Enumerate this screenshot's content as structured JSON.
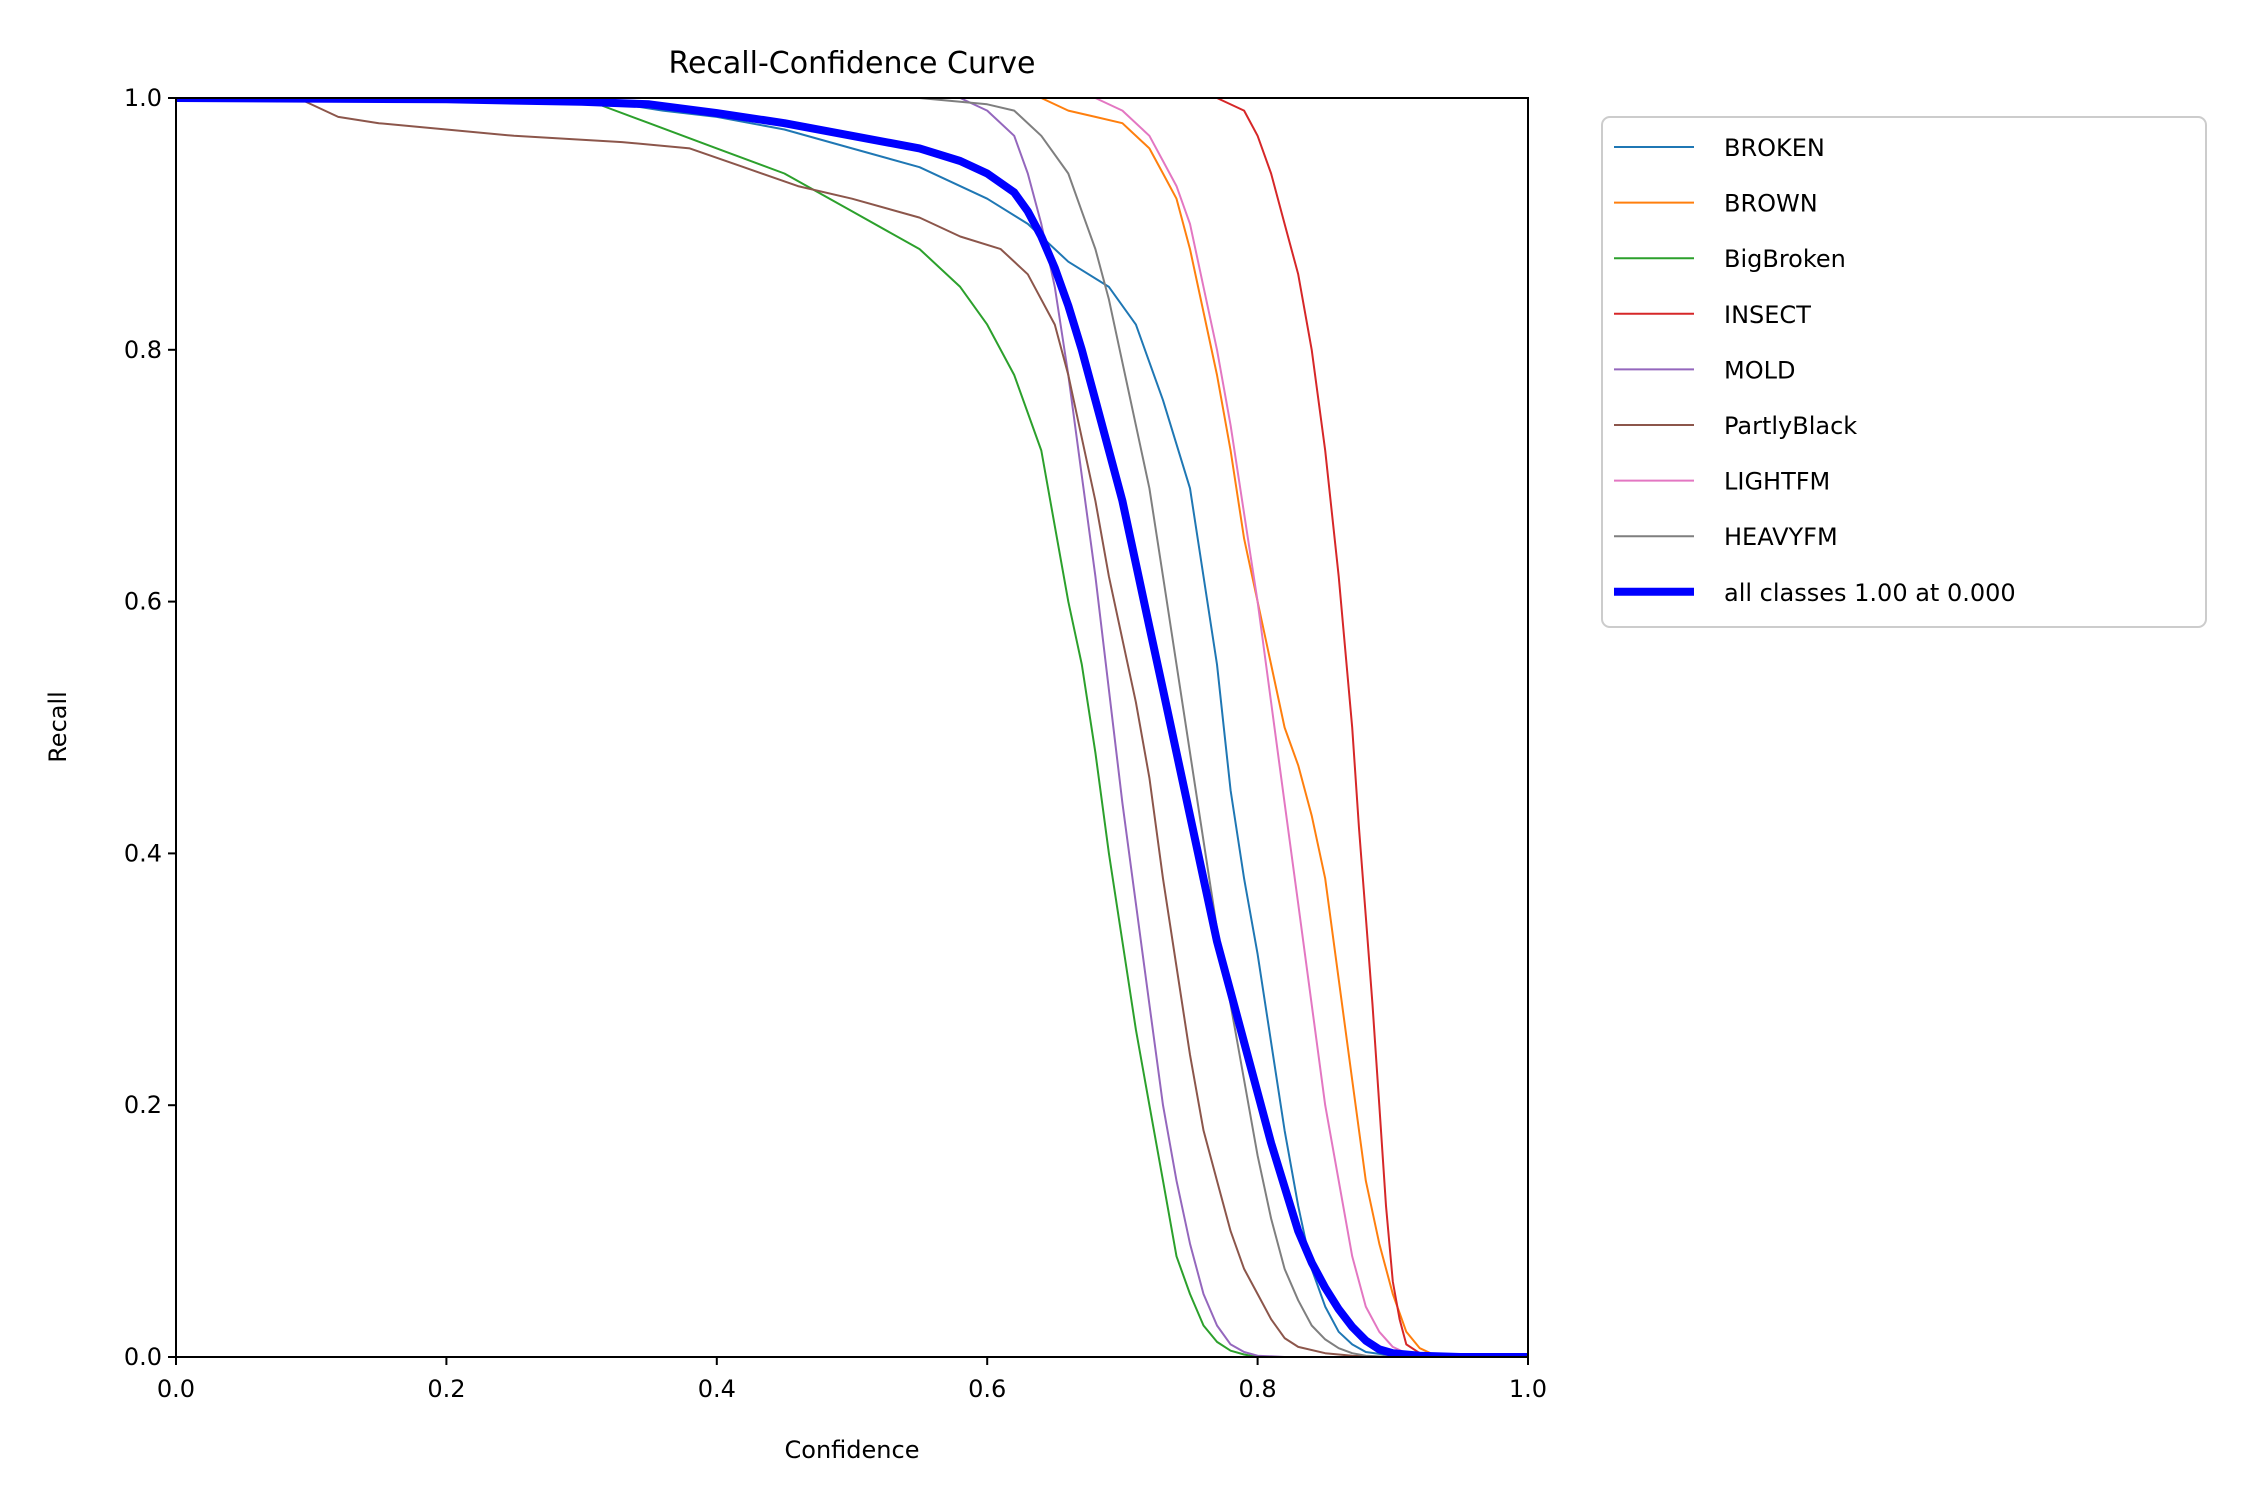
{
  "chart_data": {
    "type": "line",
    "title": "Recall-Confidence Curve",
    "xlabel": "Confidence",
    "ylabel": "Recall",
    "xlim": [
      0,
      1
    ],
    "ylim": [
      0,
      1
    ],
    "xticks": [
      "0.0",
      "0.2",
      "0.4",
      "0.6",
      "0.8",
      "1.0"
    ],
    "yticks": [
      "0.0",
      "0.2",
      "0.4",
      "0.6",
      "0.8",
      "1.0"
    ],
    "grid": false,
    "legend_position": "outside-top-right",
    "series": [
      {
        "name": "BROKEN",
        "color": "#1f77b4",
        "bold": false,
        "points": [
          [
            0,
            1
          ],
          [
            0.3,
            1
          ],
          [
            0.36,
            0.99
          ],
          [
            0.4,
            0.985
          ],
          [
            0.45,
            0.975
          ],
          [
            0.5,
            0.96
          ],
          [
            0.55,
            0.945
          ],
          [
            0.6,
            0.92
          ],
          [
            0.63,
            0.9
          ],
          [
            0.66,
            0.87
          ],
          [
            0.69,
            0.85
          ],
          [
            0.71,
            0.82
          ],
          [
            0.73,
            0.76
          ],
          [
            0.75,
            0.69
          ],
          [
            0.76,
            0.62
          ],
          [
            0.77,
            0.55
          ],
          [
            0.78,
            0.45
          ],
          [
            0.79,
            0.38
          ],
          [
            0.8,
            0.32
          ],
          [
            0.81,
            0.25
          ],
          [
            0.82,
            0.18
          ],
          [
            0.83,
            0.12
          ],
          [
            0.84,
            0.07
          ],
          [
            0.85,
            0.04
          ],
          [
            0.86,
            0.02
          ],
          [
            0.87,
            0.01
          ],
          [
            0.88,
            0.004
          ],
          [
            0.9,
            0.001
          ],
          [
            0.92,
            0
          ],
          [
            1,
            0
          ]
        ]
      },
      {
        "name": "BROWN",
        "color": "#ff7f0e",
        "bold": false,
        "points": [
          [
            0,
            1
          ],
          [
            0.6,
            1
          ],
          [
            0.64,
            1
          ],
          [
            0.66,
            0.99
          ],
          [
            0.68,
            0.985
          ],
          [
            0.7,
            0.98
          ],
          [
            0.72,
            0.96
          ],
          [
            0.73,
            0.94
          ],
          [
            0.74,
            0.92
          ],
          [
            0.75,
            0.88
          ],
          [
            0.76,
            0.83
          ],
          [
            0.77,
            0.78
          ],
          [
            0.78,
            0.72
          ],
          [
            0.79,
            0.65
          ],
          [
            0.8,
            0.6
          ],
          [
            0.81,
            0.55
          ],
          [
            0.82,
            0.5
          ],
          [
            0.83,
            0.47
          ],
          [
            0.84,
            0.43
          ],
          [
            0.85,
            0.38
          ],
          [
            0.86,
            0.3
          ],
          [
            0.87,
            0.22
          ],
          [
            0.88,
            0.14
          ],
          [
            0.89,
            0.09
          ],
          [
            0.9,
            0.05
          ],
          [
            0.91,
            0.02
          ],
          [
            0.92,
            0.007
          ],
          [
            0.93,
            0.002
          ],
          [
            0.94,
            0
          ],
          [
            1,
            0
          ]
        ]
      },
      {
        "name": "BigBroken",
        "color": "#2ca02c",
        "bold": false,
        "points": [
          [
            0,
            1
          ],
          [
            0.3,
            1
          ],
          [
            0.35,
            0.98
          ],
          [
            0.4,
            0.96
          ],
          [
            0.45,
            0.94
          ],
          [
            0.5,
            0.91
          ],
          [
            0.55,
            0.88
          ],
          [
            0.58,
            0.85
          ],
          [
            0.6,
            0.82
          ],
          [
            0.62,
            0.78
          ],
          [
            0.64,
            0.72
          ],
          [
            0.65,
            0.66
          ],
          [
            0.66,
            0.6
          ],
          [
            0.67,
            0.55
          ],
          [
            0.68,
            0.48
          ],
          [
            0.69,
            0.4
          ],
          [
            0.7,
            0.33
          ],
          [
            0.71,
            0.26
          ],
          [
            0.72,
            0.2
          ],
          [
            0.73,
            0.14
          ],
          [
            0.74,
            0.08
          ],
          [
            0.75,
            0.05
          ],
          [
            0.76,
            0.025
          ],
          [
            0.77,
            0.012
          ],
          [
            0.78,
            0.005
          ],
          [
            0.79,
            0.002
          ],
          [
            0.8,
            0
          ],
          [
            1,
            0
          ]
        ]
      },
      {
        "name": "INSECT",
        "color": "#d62728",
        "bold": false,
        "points": [
          [
            0,
            1
          ],
          [
            0.77,
            1
          ],
          [
            0.79,
            0.99
          ],
          [
            0.8,
            0.97
          ],
          [
            0.81,
            0.94
          ],
          [
            0.82,
            0.9
          ],
          [
            0.83,
            0.86
          ],
          [
            0.84,
            0.8
          ],
          [
            0.85,
            0.72
          ],
          [
            0.86,
            0.62
          ],
          [
            0.87,
            0.5
          ],
          [
            0.875,
            0.42
          ],
          [
            0.88,
            0.35
          ],
          [
            0.885,
            0.28
          ],
          [
            0.89,
            0.2
          ],
          [
            0.895,
            0.12
          ],
          [
            0.9,
            0.06
          ],
          [
            0.905,
            0.03
          ],
          [
            0.91,
            0.01
          ],
          [
            0.92,
            0.003
          ],
          [
            0.93,
            0
          ],
          [
            1,
            0
          ]
        ]
      },
      {
        "name": "MOLD",
        "color": "#9467bd",
        "bold": false,
        "points": [
          [
            0,
            1
          ],
          [
            0.55,
            1
          ],
          [
            0.58,
            1
          ],
          [
            0.6,
            0.99
          ],
          [
            0.62,
            0.97
          ],
          [
            0.63,
            0.94
          ],
          [
            0.64,
            0.9
          ],
          [
            0.65,
            0.85
          ],
          [
            0.66,
            0.78
          ],
          [
            0.67,
            0.7
          ],
          [
            0.68,
            0.62
          ],
          [
            0.69,
            0.53
          ],
          [
            0.7,
            0.44
          ],
          [
            0.71,
            0.36
          ],
          [
            0.72,
            0.28
          ],
          [
            0.73,
            0.2
          ],
          [
            0.74,
            0.14
          ],
          [
            0.75,
            0.09
          ],
          [
            0.76,
            0.05
          ],
          [
            0.77,
            0.025
          ],
          [
            0.78,
            0.01
          ],
          [
            0.79,
            0.004
          ],
          [
            0.8,
            0.001
          ],
          [
            0.82,
            0
          ],
          [
            1,
            0
          ]
        ]
      },
      {
        "name": "PartlyBlack",
        "color": "#8c564b",
        "bold": false,
        "points": [
          [
            0,
            1
          ],
          [
            0.09,
            1
          ],
          [
            0.12,
            0.985
          ],
          [
            0.15,
            0.98
          ],
          [
            0.2,
            0.975
          ],
          [
            0.25,
            0.97
          ],
          [
            0.33,
            0.965
          ],
          [
            0.38,
            0.96
          ],
          [
            0.42,
            0.945
          ],
          [
            0.46,
            0.93
          ],
          [
            0.5,
            0.92
          ],
          [
            0.55,
            0.905
          ],
          [
            0.58,
            0.89
          ],
          [
            0.61,
            0.88
          ],
          [
            0.63,
            0.86
          ],
          [
            0.65,
            0.82
          ],
          [
            0.66,
            0.78
          ],
          [
            0.67,
            0.73
          ],
          [
            0.68,
            0.68
          ],
          [
            0.69,
            0.62
          ],
          [
            0.7,
            0.57
          ],
          [
            0.71,
            0.52
          ],
          [
            0.72,
            0.46
          ],
          [
            0.73,
            0.38
          ],
          [
            0.74,
            0.31
          ],
          [
            0.75,
            0.24
          ],
          [
            0.76,
            0.18
          ],
          [
            0.77,
            0.14
          ],
          [
            0.78,
            0.1
          ],
          [
            0.79,
            0.07
          ],
          [
            0.8,
            0.05
          ],
          [
            0.81,
            0.03
          ],
          [
            0.82,
            0.015
          ],
          [
            0.83,
            0.008
          ],
          [
            0.85,
            0.003
          ],
          [
            0.87,
            0.001
          ],
          [
            0.9,
            0
          ],
          [
            1,
            0
          ]
        ]
      },
      {
        "name": "LIGHTFM",
        "color": "#e377c2",
        "bold": false,
        "points": [
          [
            0,
            1
          ],
          [
            0.68,
            1
          ],
          [
            0.7,
            0.99
          ],
          [
            0.72,
            0.97
          ],
          [
            0.73,
            0.95
          ],
          [
            0.74,
            0.93
          ],
          [
            0.75,
            0.9
          ],
          [
            0.76,
            0.85
          ],
          [
            0.77,
            0.8
          ],
          [
            0.78,
            0.74
          ],
          [
            0.79,
            0.67
          ],
          [
            0.8,
            0.6
          ],
          [
            0.81,
            0.52
          ],
          [
            0.82,
            0.44
          ],
          [
            0.83,
            0.36
          ],
          [
            0.84,
            0.28
          ],
          [
            0.85,
            0.2
          ],
          [
            0.86,
            0.14
          ],
          [
            0.87,
            0.08
          ],
          [
            0.88,
            0.04
          ],
          [
            0.89,
            0.02
          ],
          [
            0.9,
            0.008
          ],
          [
            0.91,
            0.003
          ],
          [
            0.92,
            0.001
          ],
          [
            0.93,
            0
          ],
          [
            1,
            0
          ]
        ]
      },
      {
        "name": "HEAVYFM",
        "color": "#7f7f7f",
        "bold": false,
        "points": [
          [
            0,
            1
          ],
          [
            0.55,
            1
          ],
          [
            0.6,
            0.995
          ],
          [
            0.62,
            0.99
          ],
          [
            0.64,
            0.97
          ],
          [
            0.66,
            0.94
          ],
          [
            0.67,
            0.91
          ],
          [
            0.68,
            0.88
          ],
          [
            0.69,
            0.84
          ],
          [
            0.7,
            0.79
          ],
          [
            0.71,
            0.74
          ],
          [
            0.72,
            0.69
          ],
          [
            0.73,
            0.62
          ],
          [
            0.74,
            0.55
          ],
          [
            0.75,
            0.48
          ],
          [
            0.76,
            0.41
          ],
          [
            0.77,
            0.34
          ],
          [
            0.78,
            0.28
          ],
          [
            0.79,
            0.22
          ],
          [
            0.8,
            0.16
          ],
          [
            0.81,
            0.11
          ],
          [
            0.82,
            0.07
          ],
          [
            0.83,
            0.045
          ],
          [
            0.84,
            0.025
          ],
          [
            0.85,
            0.014
          ],
          [
            0.86,
            0.007
          ],
          [
            0.87,
            0.003
          ],
          [
            0.88,
            0.001
          ],
          [
            0.9,
            0
          ],
          [
            1,
            0
          ]
        ]
      },
      {
        "name": "all classes 1.00 at 0.000",
        "color": "#0000ff",
        "bold": true,
        "points": [
          [
            0,
            1
          ],
          [
            0.2,
            0.999
          ],
          [
            0.3,
            0.997
          ],
          [
            0.35,
            0.995
          ],
          [
            0.4,
            0.988
          ],
          [
            0.45,
            0.98
          ],
          [
            0.5,
            0.97
          ],
          [
            0.55,
            0.96
          ],
          [
            0.58,
            0.95
          ],
          [
            0.6,
            0.94
          ],
          [
            0.62,
            0.925
          ],
          [
            0.63,
            0.91
          ],
          [
            0.64,
            0.89
          ],
          [
            0.65,
            0.865
          ],
          [
            0.66,
            0.835
          ],
          [
            0.67,
            0.8
          ],
          [
            0.68,
            0.76
          ],
          [
            0.69,
            0.72
          ],
          [
            0.7,
            0.68
          ],
          [
            0.71,
            0.63
          ],
          [
            0.72,
            0.58
          ],
          [
            0.73,
            0.53
          ],
          [
            0.74,
            0.48
          ],
          [
            0.75,
            0.43
          ],
          [
            0.76,
            0.38
          ],
          [
            0.77,
            0.33
          ],
          [
            0.78,
            0.29
          ],
          [
            0.79,
            0.25
          ],
          [
            0.8,
            0.21
          ],
          [
            0.81,
            0.17
          ],
          [
            0.82,
            0.135
          ],
          [
            0.83,
            0.1
          ],
          [
            0.84,
            0.075
          ],
          [
            0.85,
            0.055
          ],
          [
            0.86,
            0.038
          ],
          [
            0.87,
            0.024
          ],
          [
            0.88,
            0.013
          ],
          [
            0.89,
            0.006
          ],
          [
            0.9,
            0.003
          ],
          [
            0.92,
            0.001
          ],
          [
            0.95,
            0
          ],
          [
            1,
            0
          ]
        ]
      }
    ]
  }
}
